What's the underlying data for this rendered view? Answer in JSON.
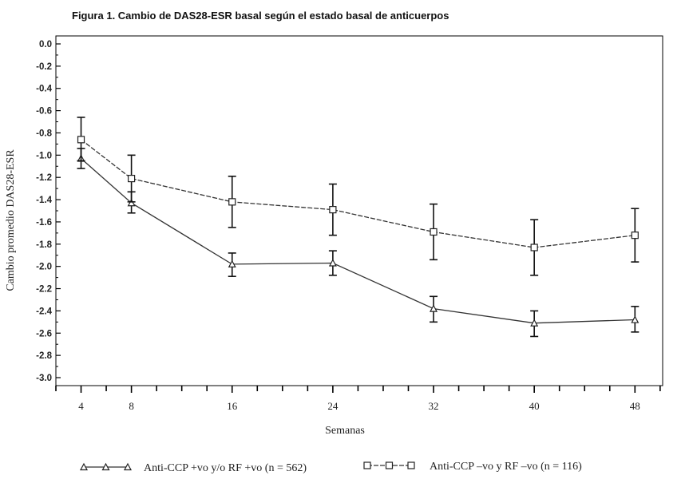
{
  "chart_data": {
    "type": "line",
    "title": "Figura 1. Cambio de DAS28-ESR basal según el estado basal de anticuerpos",
    "xlabel": "Semanas",
    "ylabel": "Cambio promedio DAS28-ESR",
    "x": [
      4,
      8,
      16,
      24,
      32,
      40,
      48
    ],
    "xlim": [
      2,
      50.2
    ],
    "ylim": [
      -3.0,
      0.0
    ],
    "yticks": [
      "0.0",
      "-0.2",
      "-0.4",
      "-0.6",
      "-0.8",
      "-1.0",
      "-1.2",
      "-1.4",
      "-1.6",
      "-1.8",
      "-2.0",
      "-2.2",
      "-2.4",
      "-2.6",
      "-2.8",
      "-3.0"
    ],
    "legend_position": "bottom",
    "grid": false,
    "series": [
      {
        "name": "Anti-CCP +vo y/o RF +vo (n = 562)",
        "marker": "triangle",
        "dash": "solid",
        "values": [
          -1.03,
          -1.43,
          -1.98,
          -1.97,
          -2.38,
          -2.51,
          -2.48
        ],
        "err_low": [
          -1.12,
          -1.52,
          -2.09,
          -2.08,
          -2.5,
          -2.63,
          -2.59
        ],
        "err_high": [
          -0.94,
          -1.33,
          -1.88,
          -1.86,
          -2.27,
          -2.4,
          -2.36
        ]
      },
      {
        "name": "Anti-CCP –vo y RF –vo (n = 116)",
        "marker": "square",
        "dash": "dashed",
        "values": [
          -0.86,
          -1.21,
          -1.42,
          -1.49,
          -1.69,
          -1.83,
          -1.72
        ],
        "err_low": [
          -1.05,
          -1.42,
          -1.65,
          -1.72,
          -1.94,
          -2.08,
          -1.96
        ],
        "err_high": [
          -0.66,
          -1.0,
          -1.19,
          -1.26,
          -1.44,
          -1.58,
          -1.48
        ]
      }
    ]
  }
}
